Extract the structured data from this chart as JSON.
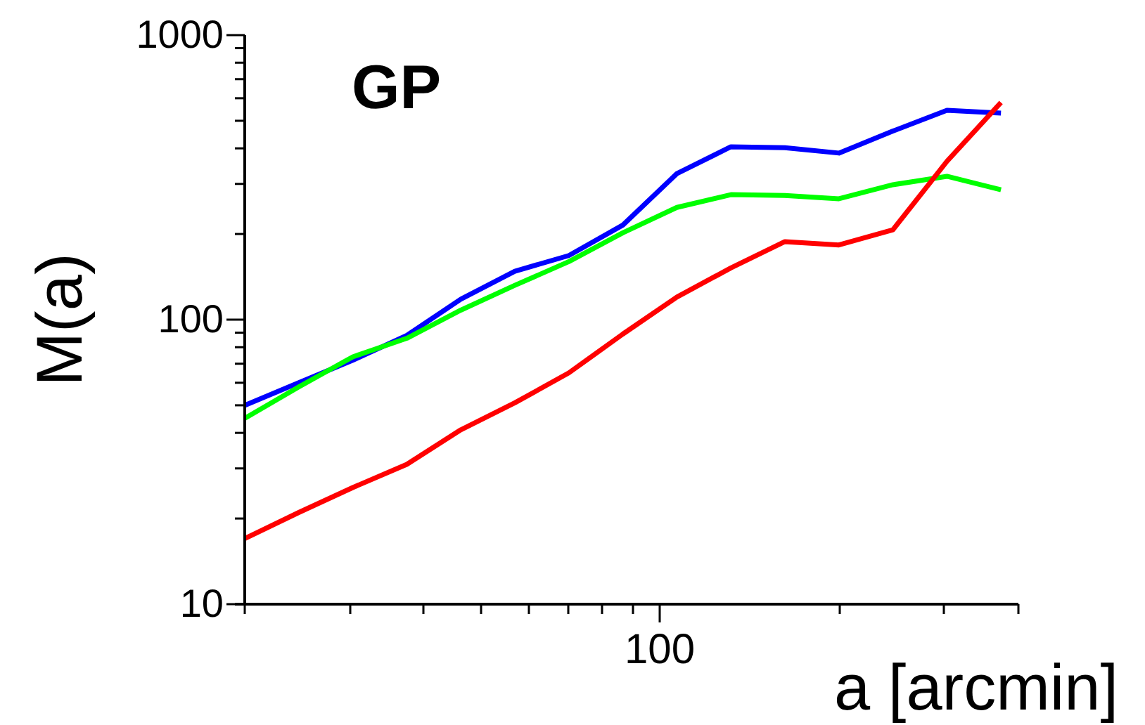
{
  "chart_data": {
    "type": "line",
    "title": "GP",
    "xlabel": "a [arcmin]",
    "ylabel": "M(a)",
    "log": "y",
    "grid": false,
    "annotations": [
      "100"
    ],
    "categories": [
      null,
      null,
      null,
      null,
      null,
      null,
      null,
      null,
      null,
      null,
      null,
      null,
      null,
      null,
      null
    ],
    "ylim": [
      10,
      1000
    ],
    "yticks": [
      10,
      {
        "value": 20,
        "label": null
      },
      {
        "value": 30,
        "label": null
      },
      {
        "value": 40,
        "label": null
      },
      {
        "value": 50,
        "label": null
      },
      {
        "value": 60,
        "label": null
      },
      {
        "value": 70,
        "label": null
      },
      {
        "value": 80,
        "label": null
      },
      {
        "value": 90,
        "label": null
      },
      100,
      {
        "value": 200,
        "label": null
      },
      {
        "value": 300,
        "label": null
      },
      {
        "value": 400,
        "label": null
      },
      {
        "value": 500,
        "label": null
      },
      {
        "value": 600,
        "label": null
      },
      {
        "value": 700,
        "label": null
      },
      {
        "value": 800,
        "label": null
      },
      {
        "value": 900,
        "label": null
      },
      1000
    ],
    "series": [
      {
        "color": "#0000ff",
        "values": [
          50,
          60,
          72,
          88,
          118,
          148,
          168,
          215,
          326,
          405,
          402,
          385,
          460,
          544,
          532
        ]
      },
      {
        "color": "#00ff00",
        "values": [
          45,
          58,
          74,
          86,
          108,
          132,
          160,
          202,
          248,
          275,
          273,
          266,
          298,
          319,
          286
        ]
      },
      {
        "color": "#ff0000",
        "values": [
          17,
          21,
          25.7,
          31,
          41,
          51,
          65,
          89,
          120,
          152,
          188,
          183,
          207,
          360,
          580
        ]
      }
    ]
  }
}
